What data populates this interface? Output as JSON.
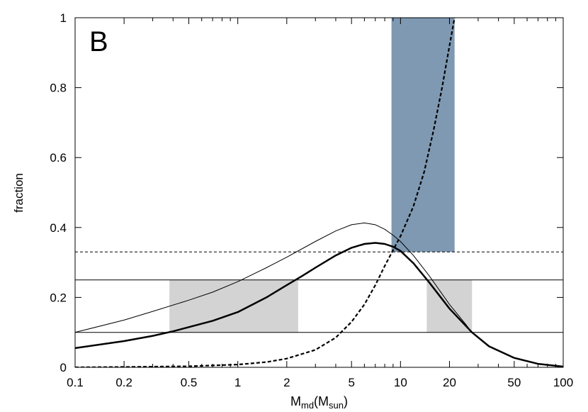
{
  "chart_data": {
    "type": "line",
    "panel_label": "B",
    "xlabel": {
      "main": "M",
      "sub1": "md",
      "mid": "(M",
      "sub2": "sun",
      "end": ")"
    },
    "ylabel": "fraction",
    "xscale": "log",
    "xlim": [
      0.1,
      100
    ],
    "ylim": [
      0,
      1
    ],
    "x_ticks": [
      0.1,
      0.2,
      0.5,
      1,
      2,
      5,
      10,
      20,
      50,
      100
    ],
    "x_tick_labels": [
      "0.1",
      "0.2",
      "0.5",
      "1",
      "2",
      "5",
      "10",
      "20",
      "50",
      "100"
    ],
    "y_ticks": [
      0,
      0.2,
      0.4,
      0.6,
      0.8,
      1
    ],
    "y_tick_labels": [
      "0",
      "0.2",
      "0.4",
      "0.6",
      "0.8",
      "1"
    ],
    "grid": false,
    "legend": "none",
    "horizontal_lines": [
      {
        "y": 0.33,
        "style": "dashed"
      },
      {
        "y": 0.25,
        "style": "solid-thin"
      },
      {
        "y": 0.1,
        "style": "solid-thin"
      }
    ],
    "shaded_regions": [
      {
        "x": [
          0.38,
          2.35
        ],
        "y": [
          0.1,
          0.25
        ],
        "color": "#d3d3d3"
      },
      {
        "x": [
          14.5,
          27.5
        ],
        "y": [
          0.1,
          0.25
        ],
        "color": "#d3d3d3"
      },
      {
        "x": [
          8.8,
          21.5
        ],
        "y": [
          0.33,
          1.0
        ],
        "color": "#7f99b2"
      }
    ],
    "series": [
      {
        "style": "thin-solid",
        "x": [
          0.1,
          0.2,
          0.3,
          0.5,
          0.7,
          1,
          1.5,
          2,
          3,
          4,
          5,
          6,
          7,
          8,
          9,
          10,
          12,
          15,
          20,
          25,
          27.5
        ],
        "y": [
          0.1,
          0.135,
          0.16,
          0.192,
          0.215,
          0.245,
          0.285,
          0.315,
          0.36,
          0.39,
          0.408,
          0.413,
          0.408,
          0.395,
          0.378,
          0.36,
          0.32,
          0.262,
          0.18,
          0.125,
          0.1
        ]
      },
      {
        "style": "thick-solid",
        "x": [
          0.1,
          0.2,
          0.3,
          0.4,
          0.5,
          0.7,
          1,
          1.5,
          2,
          2.5,
          3,
          4,
          5,
          6,
          7,
          8,
          9,
          10,
          12,
          15,
          20,
          27.5,
          35,
          50,
          70,
          100
        ],
        "y": [
          0.055,
          0.075,
          0.09,
          0.103,
          0.115,
          0.133,
          0.158,
          0.2,
          0.235,
          0.262,
          0.285,
          0.32,
          0.342,
          0.353,
          0.356,
          0.353,
          0.345,
          0.333,
          0.298,
          0.243,
          0.168,
          0.1,
          0.06,
          0.027,
          0.01,
          0.002
        ]
      },
      {
        "style": "thick-dashed",
        "x": [
          0.1,
          0.2,
          0.5,
          1,
          1.5,
          2,
          3,
          4,
          5,
          6,
          7,
          8,
          9,
          10,
          12,
          14,
          16,
          18,
          20,
          21.5
        ],
        "y": [
          0.0,
          0.001,
          0.003,
          0.008,
          0.015,
          0.025,
          0.05,
          0.085,
          0.13,
          0.18,
          0.235,
          0.29,
          0.335,
          0.375,
          0.46,
          0.56,
          0.68,
          0.8,
          0.92,
          1.0
        ]
      }
    ]
  }
}
